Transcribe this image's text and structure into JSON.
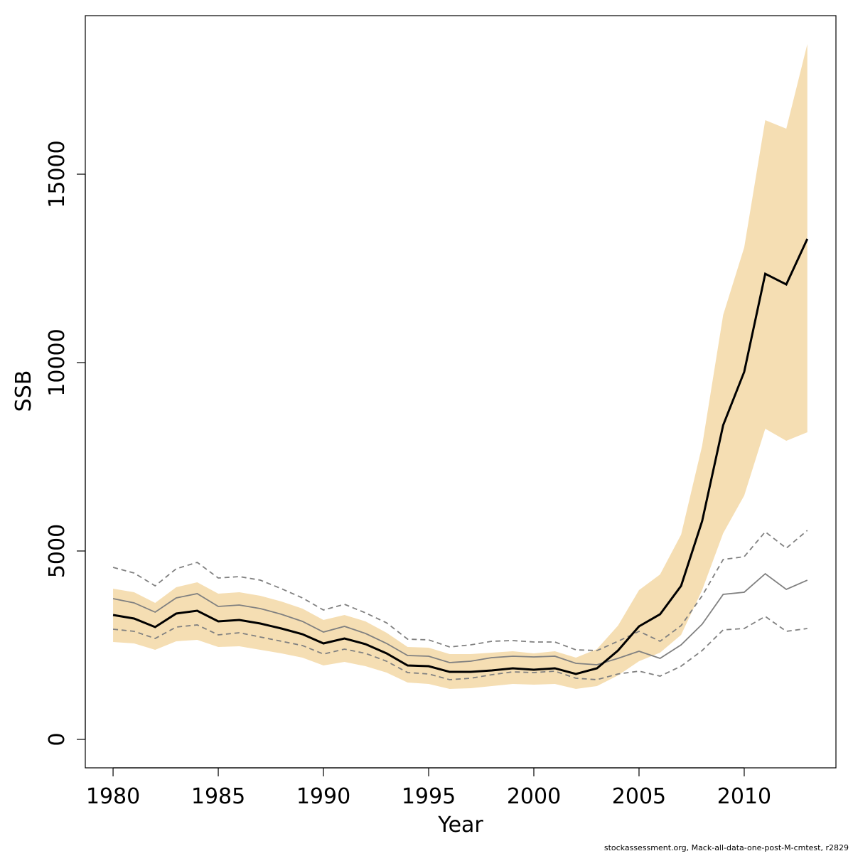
{
  "chart_data": {
    "type": "line",
    "xlabel": "Year",
    "ylabel": "SSB",
    "footnote": "stockassessment.org, Mack-all-data-one-post-M-cmtest, r2829",
    "x": [
      1980,
      1981,
      1982,
      1983,
      1984,
      1985,
      1986,
      1987,
      1988,
      1989,
      1990,
      1991,
      1992,
      1993,
      1994,
      1995,
      1996,
      1997,
      1998,
      1999,
      2000,
      2001,
      2002,
      2003,
      2004,
      2005,
      2006,
      2007,
      2008,
      2009,
      2010,
      2011,
      2012,
      2013
    ],
    "band": {
      "color": "#f5deb3",
      "upper": [
        4000,
        3906,
        3623,
        4038,
        4170,
        3868,
        3906,
        3811,
        3660,
        3472,
        3170,
        3302,
        3132,
        2830,
        2453,
        2434,
        2264,
        2264,
        2302,
        2340,
        2283,
        2340,
        2170,
        2396,
        3019,
        3962,
        4377,
        5434,
        7792,
        11264,
        13057,
        16434,
        16208,
        18453
      ],
      "lower": [
        2585,
        2547,
        2377,
        2604,
        2642,
        2453,
        2472,
        2377,
        2283,
        2170,
        1962,
        2057,
        1943,
        1774,
        1509,
        1472,
        1340,
        1358,
        1415,
        1472,
        1453,
        1472,
        1340,
        1415,
        1698,
        2075,
        2302,
        2774,
        3962,
        5472,
        6472,
        8245,
        7925,
        8151
      ]
    },
    "series": [
      {
        "color": "#808080",
        "dashed": true,
        "values": [
          4566,
          4415,
          4075,
          4528,
          4698,
          4283,
          4321,
          4226,
          4000,
          3755,
          3434,
          3585,
          3358,
          3094,
          2660,
          2642,
          2453,
          2509,
          2604,
          2623,
          2585,
          2585,
          2377,
          2358,
          2604,
          2868,
          2604,
          3019,
          3811,
          4774,
          4849,
          5509,
          5075,
          5547
        ]
      },
      {
        "color": "#808080",
        "dashed": true,
        "values": [
          2925,
          2868,
          2679,
          2981,
          3038,
          2774,
          2830,
          2717,
          2604,
          2491,
          2264,
          2396,
          2283,
          2075,
          1774,
          1736,
          1585,
          1623,
          1717,
          1792,
          1774,
          1811,
          1623,
          1585,
          1736,
          1811,
          1679,
          1943,
          2358,
          2906,
          2943,
          3264,
          2868,
          2943
        ]
      },
      {
        "color": "#808080",
        "dashed": false,
        "values": [
          3736,
          3623,
          3377,
          3755,
          3868,
          3528,
          3566,
          3472,
          3321,
          3132,
          2849,
          3000,
          2811,
          2547,
          2226,
          2208,
          2038,
          2075,
          2170,
          2208,
          2189,
          2208,
          2019,
          1981,
          2151,
          2340,
          2151,
          2509,
          3057,
          3849,
          3906,
          4396,
          3981,
          4226
        ]
      },
      {
        "color": "#000000",
        "dashed": false,
        "values": [
          3302,
          3208,
          2981,
          3340,
          3415,
          3132,
          3170,
          3075,
          2943,
          2792,
          2547,
          2679,
          2528,
          2283,
          1962,
          1943,
          1792,
          1792,
          1830,
          1887,
          1849,
          1887,
          1736,
          1887,
          2358,
          3000,
          3321,
          4075,
          5792,
          8340,
          9755,
          12358,
          12075,
          13283
        ]
      }
    ],
    "xlim": [
      1978.68,
      2014.36
    ],
    "ylim": [
      -755,
      19208
    ],
    "xticks": [
      1980,
      1985,
      1990,
      1995,
      2000,
      2005,
      2010
    ],
    "yticks": [
      0,
      5000,
      10000,
      15000
    ]
  }
}
